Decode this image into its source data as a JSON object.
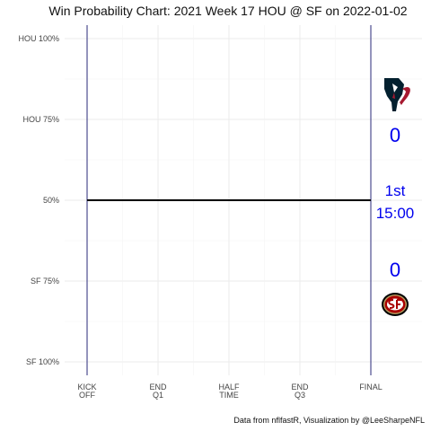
{
  "chart_data": {
    "type": "line",
    "title": "Win Probability Chart: 2021 Week 17 HOU @ SF on 2022-01-02",
    "caption": "Data from nflfastR, Visualization by @LeeSharpeNFL",
    "y_ticks": [
      {
        "value": 100,
        "label": "HOU 100%"
      },
      {
        "value": 75,
        "label": "HOU 75%"
      },
      {
        "value": 50,
        "label": "50%"
      },
      {
        "value": 25,
        "label": "SF 75%"
      },
      {
        "value": 0,
        "label": "SF 100%"
      }
    ],
    "x_ticks": [
      {
        "value": 0,
        "lines": [
          "KICK",
          "OFF"
        ]
      },
      {
        "value": 15,
        "lines": [
          "END",
          "Q1"
        ]
      },
      {
        "value": 30,
        "lines": [
          "HALF",
          "TIME"
        ]
      },
      {
        "value": 45,
        "lines": [
          "END",
          "Q3"
        ]
      },
      {
        "value": 60,
        "lines": [
          "FINAL"
        ]
      }
    ],
    "xlim": [
      0,
      60
    ],
    "ylim": [
      0,
      100
    ],
    "grid": true,
    "series": [
      {
        "x": [
          0,
          60
        ],
        "y": [
          50,
          50
        ],
        "color": "#000000"
      }
    ],
    "vlines": [
      0,
      60
    ],
    "vline_color": "#2a2a7a"
  },
  "scoreboard": {
    "home_team_logo": "texans-logo",
    "away_team_logo": "49ers-logo",
    "hou_score": "0",
    "sf_score": "0",
    "quarter": "1st",
    "clock": "15:00",
    "text_color": "#0000ee",
    "hou_colors": {
      "navy": "#03202f",
      "red": "#a71930"
    },
    "sf_colors": {
      "red": "#aa0000",
      "gold": "#b3995d"
    }
  }
}
